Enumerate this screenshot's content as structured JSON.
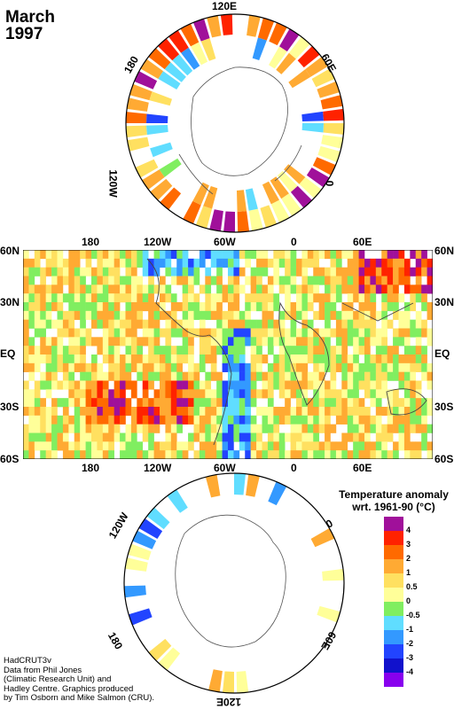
{
  "title": {
    "month": "March",
    "year": "1997"
  },
  "north_polar": {
    "labels": [
      "120E",
      "60E",
      "0",
      "120W",
      "180"
    ]
  },
  "equirect": {
    "top_lon_labels": [
      "180",
      "120W",
      "60W",
      "0",
      "60E"
    ],
    "bottom_lon_labels": [
      "180",
      "120W",
      "60W",
      "0",
      "60E"
    ],
    "lat_labels": [
      "60N",
      "30N",
      "EQ",
      "30S",
      "60S"
    ]
  },
  "south_polar": {
    "labels": [
      "120W",
      "0",
      "180",
      "60E",
      "120E"
    ]
  },
  "legend": {
    "title_line1": "Temperature anomaly",
    "title_line2": "wrt. 1961-90  (°C)",
    "items": [
      {
        "label": "4",
        "color": "#a0109a"
      },
      {
        "label": "3",
        "color": "#ff2200"
      },
      {
        "label": "2",
        "color": "#ff6a00"
      },
      {
        "label": "1",
        "color": "#ffaa33"
      },
      {
        "label": "0.5",
        "color": "#ffe060"
      },
      {
        "label": "0",
        "color": "#ffff99"
      },
      {
        "label": "-0.5",
        "color": "#80ee60"
      },
      {
        "label": "-1",
        "color": "#60ddff"
      },
      {
        "label": "-2",
        "color": "#3399ff"
      },
      {
        "label": "-3",
        "color": "#2244ff"
      },
      {
        "label": "-4",
        "color": "#1111cc"
      },
      {
        "label": "",
        "color": "#8800ee"
      }
    ]
  },
  "credit": {
    "line1": "HadCRUT3v",
    "line2": "Data from Phil Jones",
    "line3": "(Climatic Research Unit) and",
    "line4": "Hadley Centre.  Graphics produced",
    "line5": "by Tim Osborn and Mike Salmon (CRU)."
  }
}
